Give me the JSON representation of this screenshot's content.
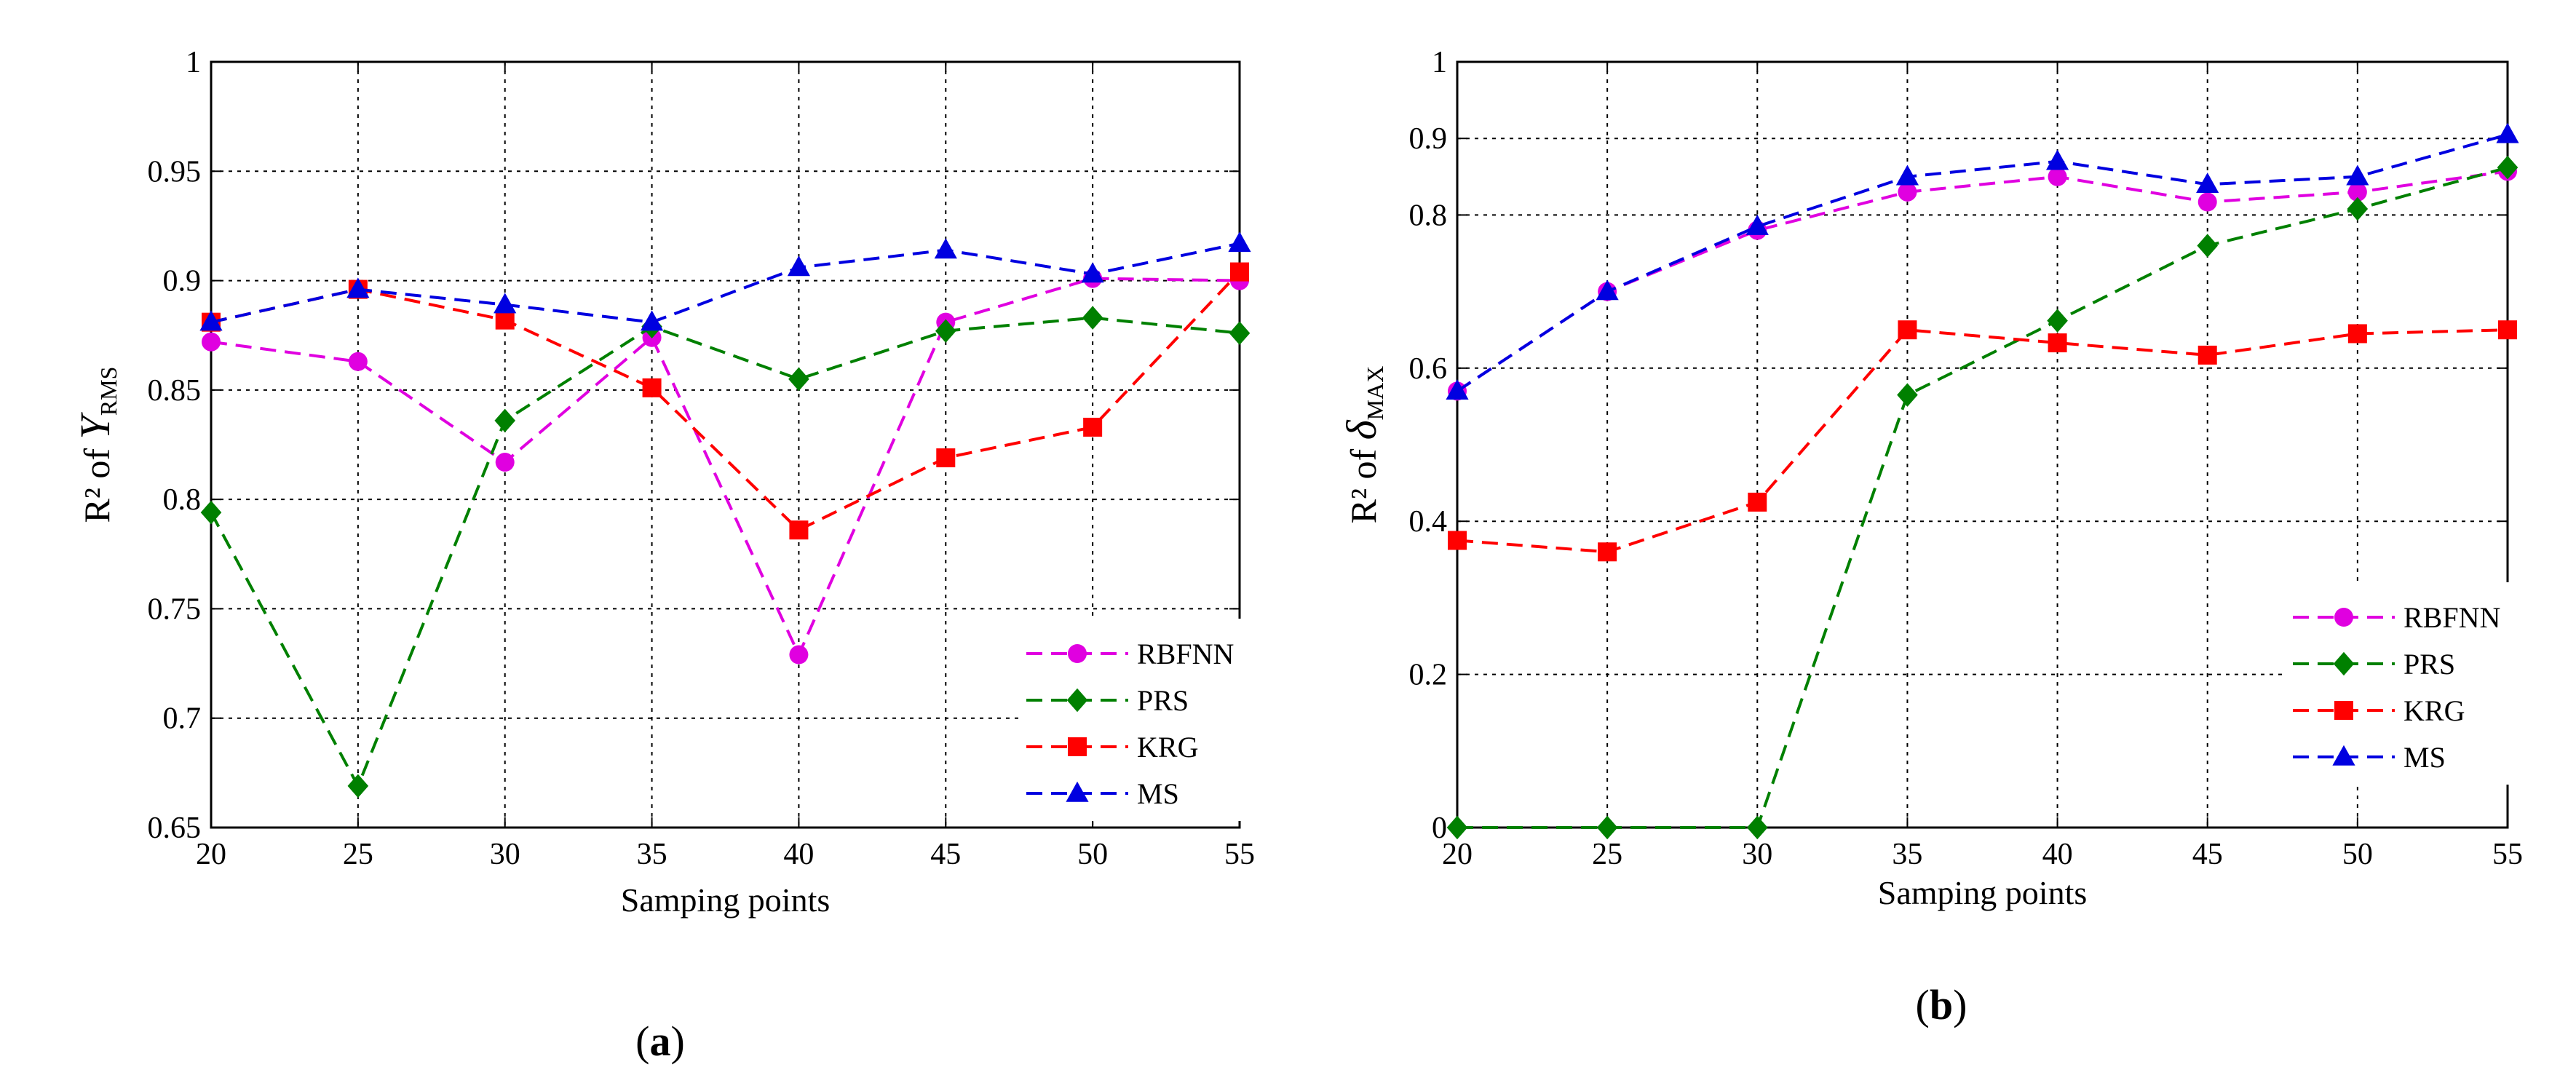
{
  "chart_data": [
    {
      "panel_label": "(a)",
      "panel_letter": "a",
      "type": "line",
      "xlabel": "Samping points",
      "ylabel_prefix": "R² of ",
      "ylabel_symbol": "Y",
      "ylabel_subscript": "RMS",
      "x": [
        20,
        25,
        30,
        35,
        40,
        45,
        50,
        55
      ],
      "xlim": [
        20,
        55
      ],
      "ylim": [
        0.65,
        1
      ],
      "xticks": [
        "20",
        "25",
        "30",
        "35",
        "40",
        "45",
        "50",
        "55"
      ],
      "yticks": [
        "0.65",
        "0.7",
        "0.75",
        "0.8",
        "0.85",
        "0.9",
        "0.95",
        "1"
      ],
      "grid": true,
      "legend_position": "bottom-right",
      "series": [
        {
          "name": "RBFNN",
          "color": "#e000e0",
          "marker": "circle",
          "values": [
            0.872,
            0.863,
            0.817,
            0.874,
            0.729,
            0.881,
            0.901,
            0.9
          ]
        },
        {
          "name": "PRS",
          "color": "#008000",
          "marker": "diamond",
          "values": [
            0.794,
            0.669,
            0.836,
            0.879,
            0.855,
            0.877,
            0.883,
            0.876
          ]
        },
        {
          "name": "KRG",
          "color": "#ff0000",
          "marker": "square",
          "values": [
            0.881,
            0.896,
            0.882,
            0.851,
            0.786,
            0.819,
            0.833,
            0.904
          ]
        },
        {
          "name": "MS",
          "color": "#0000e0",
          "marker": "triangle",
          "values": [
            0.881,
            0.896,
            0.889,
            0.881,
            0.906,
            0.914,
            0.903,
            0.917
          ]
        }
      ]
    },
    {
      "panel_label": "(b)",
      "panel_letter": "b",
      "type": "line",
      "xlabel": "Samping points",
      "ylabel_prefix": "R² of ",
      "ylabel_symbol": "δ",
      "ylabel_subscript": "MAX",
      "x": [
        20,
        25,
        30,
        35,
        40,
        45,
        50,
        55
      ],
      "xlim": [
        20,
        55
      ],
      "ylim": [
        0,
        1
      ],
      "xticks": [
        "20",
        "25",
        "30",
        "35",
        "40",
        "45",
        "50",
        "55"
      ],
      "yticks": [
        "0",
        "0.2",
        "0.4",
        "0.6",
        "0.8",
        "0.9",
        "1"
      ],
      "ytick_values": [
        0,
        0.2,
        0.4,
        0.6,
        0.8,
        0.9,
        1
      ],
      "grid": true,
      "legend_position": "bottom-right",
      "series": [
        {
          "name": "RBFNN",
          "color": "#e000e0",
          "marker": "circle",
          "values": [
            0.57,
            0.7,
            0.78,
            0.83,
            0.85,
            0.817,
            0.83,
            0.857
          ]
        },
        {
          "name": "PRS",
          "color": "#008000",
          "marker": "diamond",
          "values": [
            0.0,
            0.0,
            0.0,
            0.565,
            0.662,
            0.76,
            0.808,
            0.862
          ]
        },
        {
          "name": "KRG",
          "color": "#ff0000",
          "marker": "square",
          "values": [
            0.375,
            0.36,
            0.425,
            0.65,
            0.633,
            0.617,
            0.645,
            0.65
          ]
        },
        {
          "name": "MS",
          "color": "#0000e0",
          "marker": "triangle",
          "values": [
            0.57,
            0.7,
            0.785,
            0.85,
            0.87,
            0.84,
            0.85,
            0.905
          ]
        }
      ]
    }
  ]
}
